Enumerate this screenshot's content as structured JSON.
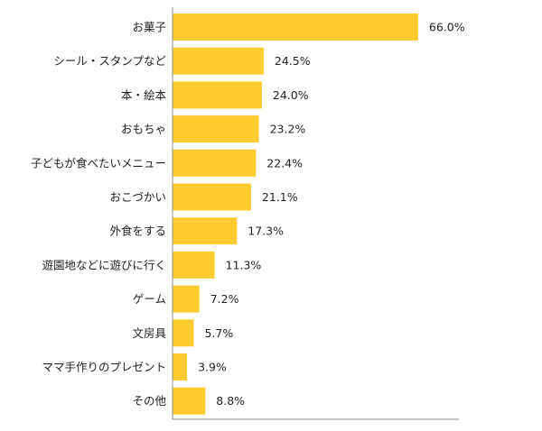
{
  "chart_data": {
    "type": "bar",
    "orientation": "horizontal",
    "categories": [
      "お菓子",
      "シール・スタンプなど",
      "本・絵本",
      "おもちゃ",
      "子どもが食べたいメニュー",
      "おこづかい",
      "外食をする",
      "遊園地などに遊びに行く",
      "ゲーム",
      "文房具",
      "ママ手作りのプレゼント",
      "その他"
    ],
    "values": [
      66.0,
      24.5,
      24.0,
      23.2,
      22.4,
      21.1,
      17.3,
      11.3,
      7.2,
      5.7,
      3.9,
      8.8
    ],
    "value_labels": [
      "66.0%",
      "24.5%",
      "24.0%",
      "23.2%",
      "22.4%",
      "21.1%",
      "17.3%",
      "11.3%",
      "7.2%",
      "5.7%",
      "3.9%",
      "8.8%"
    ],
    "unit": "%",
    "xlim": [
      0,
      77
    ],
    "grid": false,
    "legend": "none",
    "bar_color": "#FFCB2F",
    "axis_color": "#8C8C8C"
  }
}
